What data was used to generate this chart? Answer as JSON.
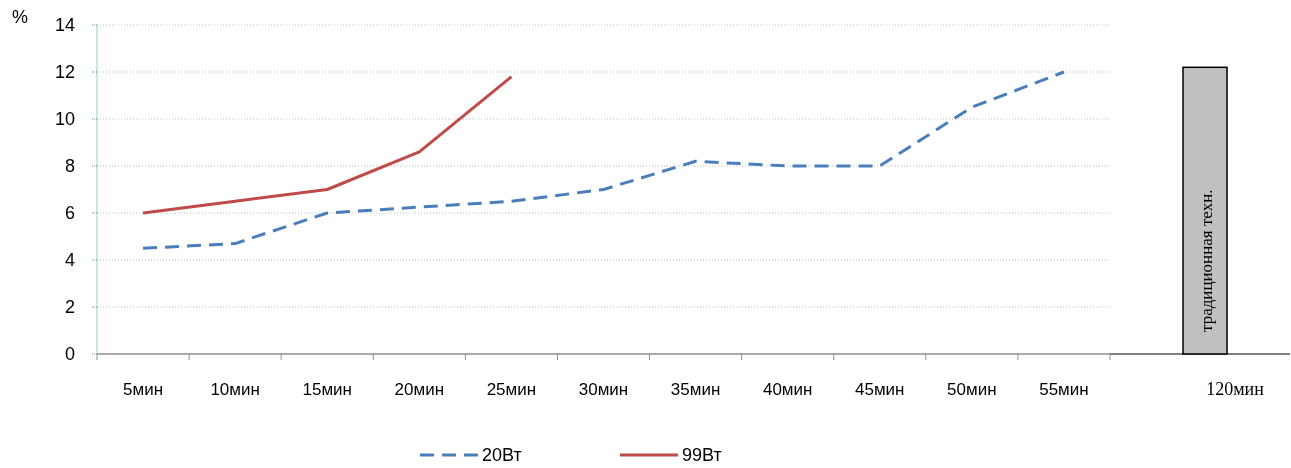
{
  "chart_data": {
    "type": "line",
    "ylabel": "%",
    "categories": [
      "5мин",
      "10мин",
      "15мин",
      "20мин",
      "25мин",
      "30мин",
      "35мин",
      "40мин",
      "45мин",
      "50мин",
      "55мин",
      "120мин"
    ],
    "series": [
      {
        "name": "20Вт",
        "color": "#4a7ebb",
        "line_style": "dashed",
        "values": [
          4.5,
          4.7,
          6.0,
          6.25,
          6.5,
          7.0,
          8.2,
          8.0,
          8.0,
          10.5,
          12.0,
          null
        ]
      },
      {
        "name": "99Вт",
        "color": "#be4b48",
        "line_style": "solid",
        "values": [
          6.0,
          6.5,
          7.0,
          8.6,
          11.8,
          null,
          null,
          null,
          null,
          null,
          null,
          null
        ]
      },
      {
        "type": "bar",
        "name": "традиционная техн.",
        "color": "#c0c0c0",
        "values": [
          null,
          null,
          null,
          null,
          null,
          null,
          null,
          null,
          null,
          null,
          null,
          12.2
        ]
      }
    ],
    "ylim": [
      0,
      14
    ],
    "yticks": [
      0,
      2,
      4,
      6,
      8,
      10,
      12,
      14
    ],
    "grid": "y",
    "legend": "bottom"
  }
}
